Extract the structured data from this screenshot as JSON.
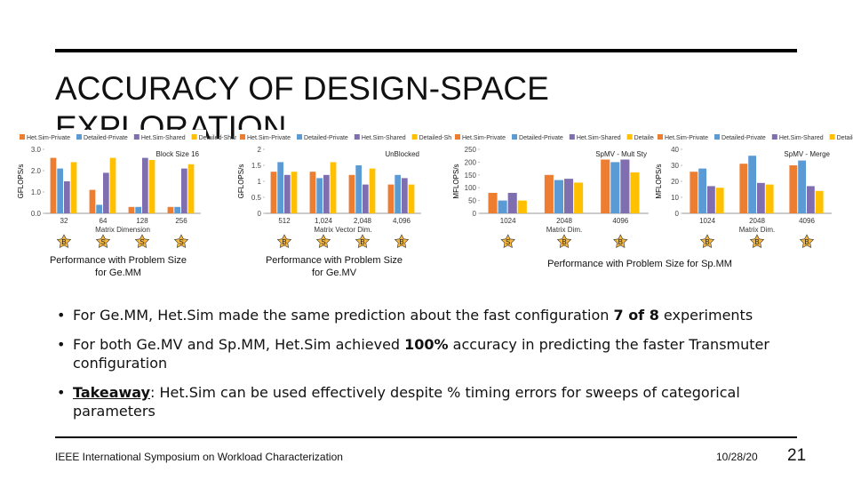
{
  "slide": {
    "title": "ACCURACY OF DESIGN-SPACE EXPLORATION",
    "captions": [
      "Performance with Problem Size for Ge.MM",
      "Performance with Problem Size for Ge.MV",
      "Performance with Problem Size for Sp.MM"
    ],
    "bullets": [
      {
        "segments": [
          {
            "text": "For Ge.MM, Het.Sim made the same prediction about the fast configuration "
          },
          {
            "text": "7 of 8",
            "bold": true
          },
          {
            "text": " experiments"
          }
        ]
      },
      {
        "segments": [
          {
            "text": "For both Ge.MV and Sp.MM, Het.Sim achieved "
          },
          {
            "text": "100%",
            "bold": true
          },
          {
            "text": " accuracy in predicting the faster Transmuter configuration"
          }
        ]
      },
      {
        "segments": [
          {
            "text": "Takeaway",
            "bold": true,
            "underline": true
          },
          {
            "text": ": Het.Sim can be used effectively despite % timing errors for sweeps of categorical parameters"
          }
        ]
      }
    ],
    "footer": {
      "left": "IEEE International Symposium on Workload Characterization",
      "date": "10/28/20",
      "page": "21"
    }
  },
  "chart_data": [
    {
      "type": "bar",
      "ylabel": "GFLOPS/s",
      "xlabel": "Matrix Dimension",
      "annotation": "Block Size 16",
      "categories": [
        "32",
        "64",
        "128",
        "256"
      ],
      "markers": [
        "B",
        "S",
        "S",
        "S"
      ],
      "ylim": [
        0,
        3
      ],
      "yticks": [
        {
          "value": 0,
          "label": "0.0"
        },
        {
          "value": 1,
          "label": "1.0"
        },
        {
          "value": 2,
          "label": "2.0"
        },
        {
          "value": 3,
          "label": "3.0"
        }
      ],
      "series": [
        {
          "name": "Het.Sim-Private",
          "color": "#ed7d31",
          "values": [
            2.6,
            1.1,
            0.3,
            0.3
          ]
        },
        {
          "name": "Detailed-Private",
          "color": "#5b9bd5",
          "values": [
            2.1,
            0.4,
            0.3,
            0.3
          ]
        },
        {
          "name": "Het.Sim-Shared",
          "color": "#7f6fb0",
          "values": [
            1.5,
            1.9,
            2.6,
            2.1
          ]
        },
        {
          "name": "Detailed-Shared",
          "color": "#ffc000",
          "values": [
            2.4,
            2.6,
            2.5,
            2.3
          ]
        }
      ]
    },
    {
      "type": "bar",
      "ylabel": "GFLOPS/s",
      "xlabel": "Matrix Vector Dim.",
      "annotation": "UnBlocked",
      "categories": [
        "512",
        "1,024",
        "2,048",
        "4,096"
      ],
      "markers": [
        "B",
        "S",
        "B",
        "B"
      ],
      "ylim": [
        0,
        2
      ],
      "yticks": [
        0,
        0.5,
        1,
        1.5,
        2
      ],
      "series": [
        {
          "name": "Het.Sim-Private",
          "color": "#ed7d31",
          "values": [
            1.3,
            1.3,
            1.2,
            0.9
          ]
        },
        {
          "name": "Detailed-Private",
          "color": "#5b9bd5",
          "values": [
            1.6,
            1.1,
            1.5,
            1.2
          ]
        },
        {
          "name": "Het.Sim-Shared",
          "color": "#7f6fb0",
          "values": [
            1.2,
            1.2,
            0.9,
            1.1
          ]
        },
        {
          "name": "Detailed-Shared",
          "color": "#ffc000",
          "values": [
            1.3,
            1.6,
            1.4,
            0.9
          ]
        }
      ]
    },
    {
      "type": "bar",
      "ylabel": "MFLOPS/s",
      "xlabel": "Matrix Dim.",
      "annotation": "SpMV - Mult Sty",
      "categories": [
        "1024",
        "2048",
        "4096"
      ],
      "markers": [
        "S",
        "B",
        "B"
      ],
      "ylim": [
        0,
        250
      ],
      "yticks": [
        0,
        50,
        100,
        150,
        200,
        250
      ],
      "series": [
        {
          "name": "Het.Sim-Private",
          "color": "#ed7d31",
          "values": [
            80,
            150,
            210
          ]
        },
        {
          "name": "Detailed-Private",
          "color": "#5b9bd5",
          "values": [
            50,
            130,
            200
          ]
        },
        {
          "name": "Het.Sim-Shared",
          "color": "#7f6fb0",
          "values": [
            80,
            135,
            210
          ]
        },
        {
          "name": "Detailed-Shared",
          "color": "#ffc000",
          "values": [
            50,
            120,
            160
          ]
        }
      ]
    },
    {
      "type": "bar",
      "ylabel": "MFLOPS/s",
      "xlabel": "Matrix Dim.",
      "annotation": "SpMV - Merge",
      "categories": [
        "1024",
        "2048",
        "4096"
      ],
      "markers": [
        "B",
        "B",
        "B"
      ],
      "ylim": [
        0,
        40
      ],
      "yticks": [
        0,
        10,
        20,
        30,
        40
      ],
      "series": [
        {
          "name": "Het.Sim-Private",
          "color": "#ed7d31",
          "values": [
            26,
            31,
            30
          ]
        },
        {
          "name": "Detailed-Private",
          "color": "#5b9bd5",
          "values": [
            28,
            36,
            33
          ]
        },
        {
          "name": "Het.Sim-Shared",
          "color": "#7f6fb0",
          "values": [
            17,
            19,
            17
          ]
        },
        {
          "name": "Detailed-Shared",
          "color": "#ffc000",
          "values": [
            16,
            18,
            14
          ]
        }
      ]
    }
  ]
}
